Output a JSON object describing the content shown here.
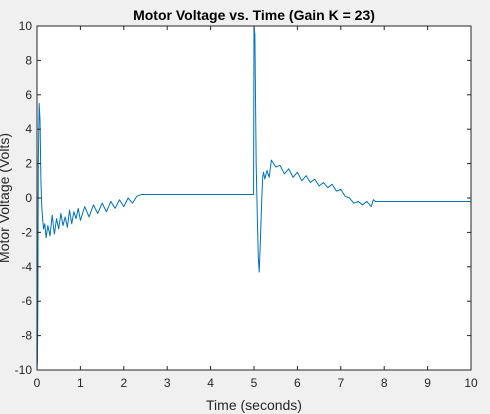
{
  "chart_data": {
    "type": "line",
    "title": "Motor Voltage vs. Time (Gain K = 23)",
    "xlabel": "Time (seconds)",
    "ylabel": "Motor Voltage (Volts)",
    "xlim": [
      0,
      10
    ],
    "ylim": [
      -10,
      10
    ],
    "xticks": [
      0,
      1,
      2,
      3,
      4,
      5,
      6,
      7,
      8,
      9,
      10
    ],
    "yticks": [
      -10,
      -8,
      -6,
      -4,
      -2,
      0,
      2,
      4,
      6,
      8,
      10
    ],
    "grid": false,
    "legend": "none",
    "line_color": "#0072BD",
    "series": [
      {
        "x": [
          0.0,
          0.01,
          0.02,
          0.03,
          0.05,
          0.07,
          0.09,
          0.11,
          0.13,
          0.15,
          0.18,
          0.21,
          0.25,
          0.3,
          0.35,
          0.4,
          0.45,
          0.5,
          0.55,
          0.6,
          0.65,
          0.7,
          0.75,
          0.8,
          0.85,
          0.9,
          0.95,
          1.0,
          1.1,
          1.2,
          1.3,
          1.4,
          1.5,
          1.6,
          1.7,
          1.8,
          1.9,
          2.0,
          2.1,
          2.2,
          2.3,
          2.4,
          2.6,
          3.0,
          3.5,
          4.0,
          4.5,
          4.99,
          5.0,
          5.02,
          5.05,
          5.08,
          5.1,
          5.12,
          5.14,
          5.16,
          5.18,
          5.2,
          5.22,
          5.25,
          5.3,
          5.35,
          5.4,
          5.5,
          5.6,
          5.7,
          5.8,
          5.9,
          6.0,
          6.1,
          6.2,
          6.3,
          6.4,
          6.5,
          6.6,
          6.7,
          6.8,
          6.9,
          7.0,
          7.1,
          7.2,
          7.3,
          7.4,
          7.5,
          7.6,
          7.7,
          7.75,
          7.8,
          8.0,
          8.5,
          9.0,
          9.5,
          10.0
        ],
        "y": [
          -10.0,
          -9.5,
          -6.0,
          2.0,
          5.5,
          4.5,
          1.0,
          -0.5,
          -1.2,
          -1.8,
          -1.5,
          -2.3,
          -1.6,
          -2.2,
          -1.0,
          -2.1,
          -1.2,
          -1.8,
          -0.9,
          -1.6,
          -1.1,
          -1.7,
          -0.7,
          -1.5,
          -0.8,
          -1.2,
          -0.6,
          -1.3,
          -0.5,
          -1.1,
          -0.4,
          -0.9,
          -0.3,
          -0.8,
          -0.2,
          -0.6,
          -0.1,
          -0.5,
          0.0,
          -0.3,
          0.1,
          0.2,
          0.2,
          0.2,
          0.2,
          0.2,
          0.2,
          0.2,
          10.0,
          9.5,
          2.0,
          -1.5,
          -3.5,
          -4.3,
          -3.0,
          -1.5,
          0.0,
          1.2,
          1.5,
          1.1,
          1.6,
          1.2,
          2.2,
          1.8,
          1.9,
          1.4,
          1.7,
          1.2,
          1.5,
          1.0,
          1.3,
          0.9,
          1.1,
          0.7,
          0.9,
          0.6,
          0.8,
          0.4,
          0.5,
          0.1,
          0.0,
          -0.3,
          -0.2,
          -0.4,
          -0.2,
          -0.5,
          -0.1,
          -0.2,
          -0.2,
          -0.2,
          -0.2,
          -0.2,
          -0.2
        ]
      }
    ]
  }
}
